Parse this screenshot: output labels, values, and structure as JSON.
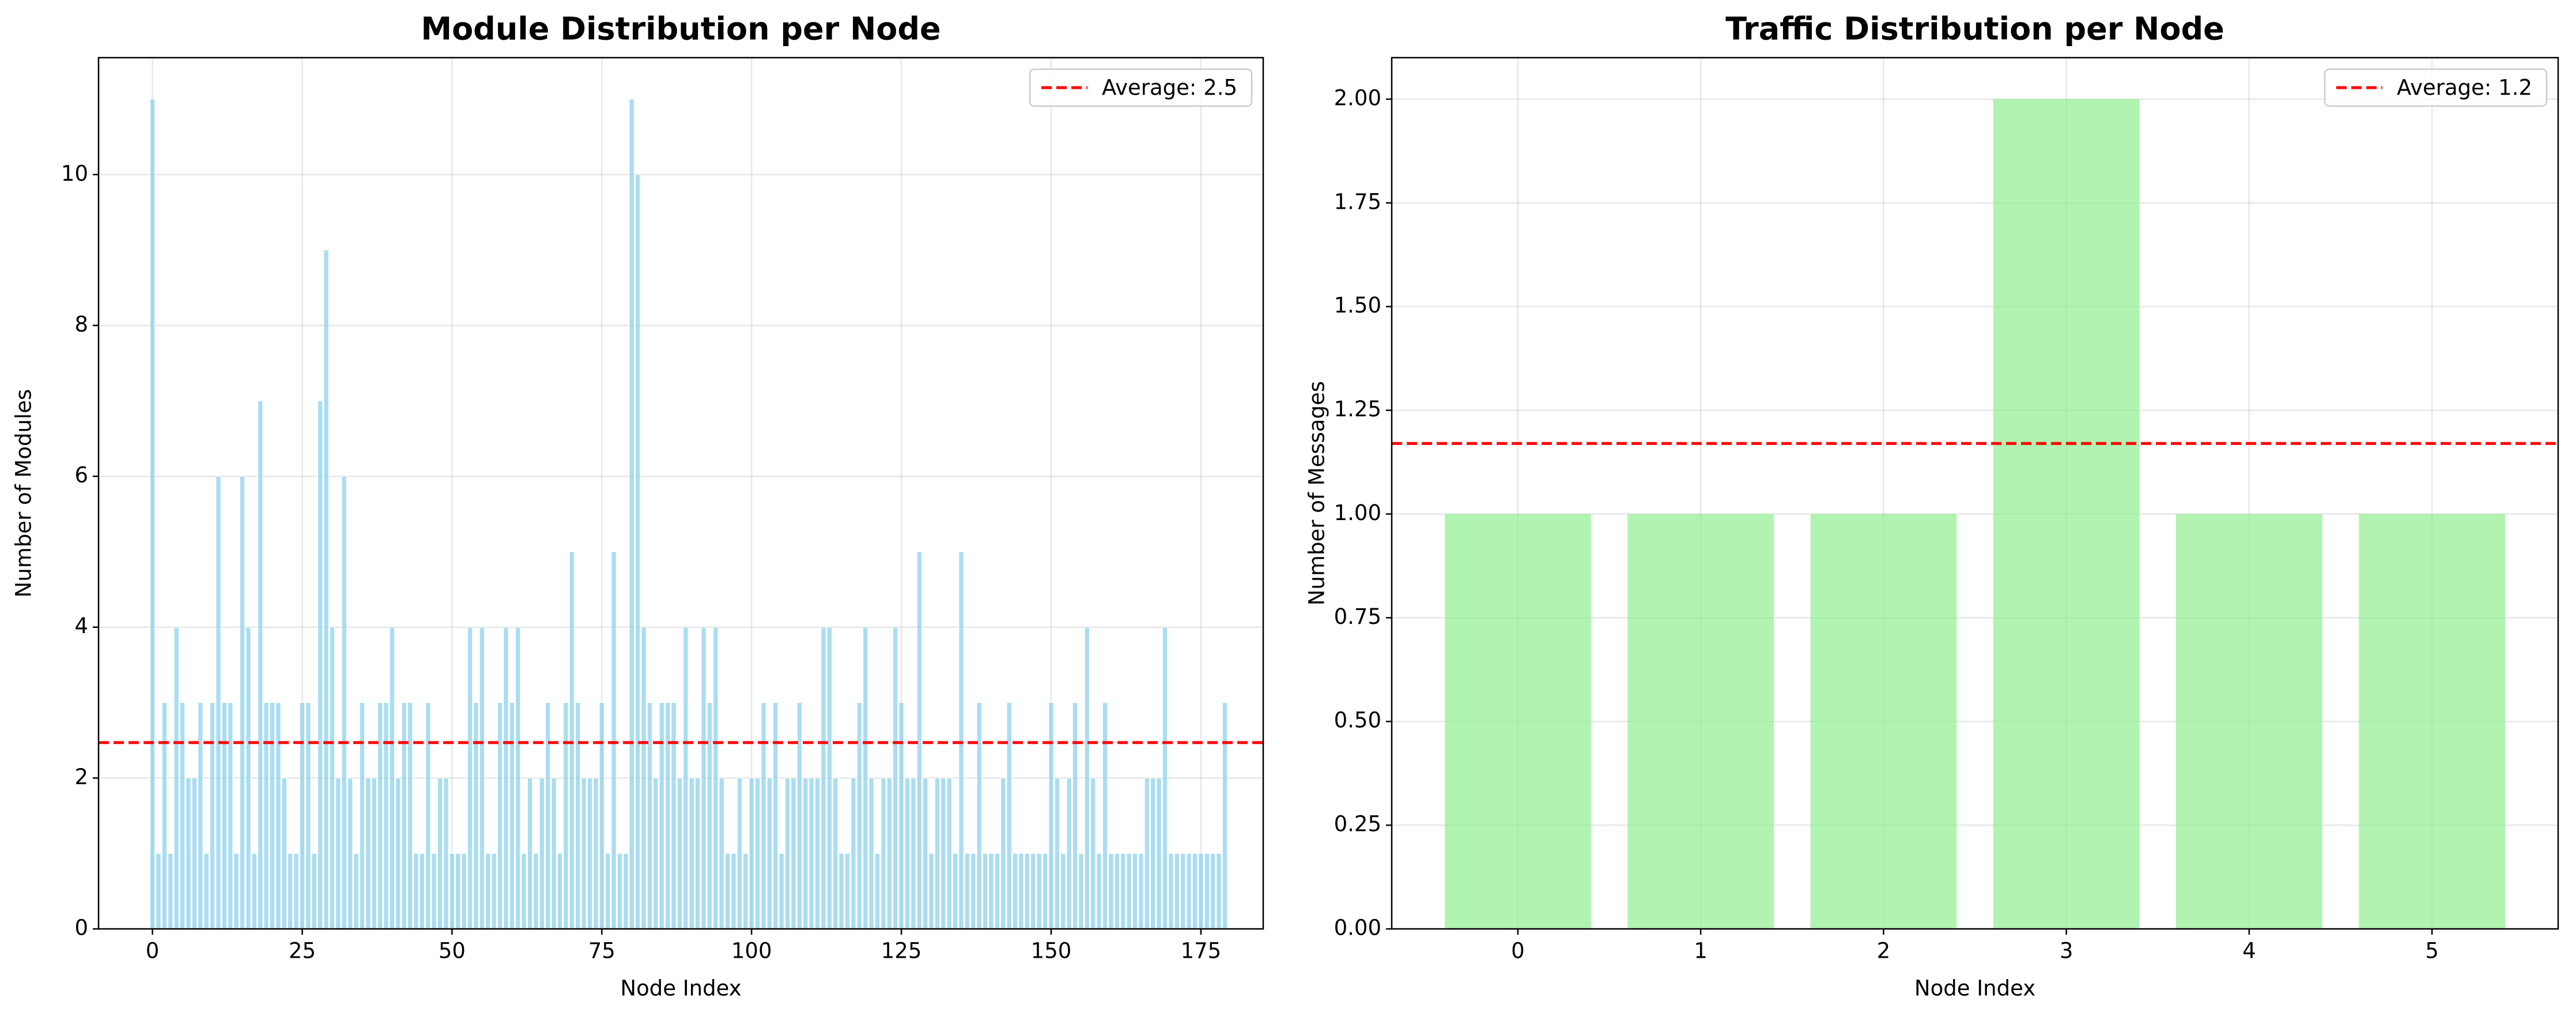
{
  "chart_data": [
    {
      "type": "bar",
      "title": "Module Distribution per Node",
      "xlabel": "Node Index",
      "ylabel": "Number of Modules",
      "x": [
        0,
        1,
        2,
        3,
        4,
        5,
        6,
        7,
        8,
        9,
        10,
        11,
        12,
        13,
        14,
        15,
        16,
        17,
        18,
        19,
        20,
        21,
        22,
        23,
        24,
        25,
        26,
        27,
        28,
        29,
        30,
        31,
        32,
        33,
        34,
        35,
        36,
        37,
        38,
        39,
        40,
        41,
        42,
        43,
        44,
        45,
        46,
        47,
        48,
        49,
        50,
        51,
        52,
        53,
        54,
        55,
        56,
        57,
        58,
        59,
        60,
        61,
        62,
        63,
        64,
        65,
        66,
        67,
        68,
        69,
        70,
        71,
        72,
        73,
        74,
        75,
        76,
        77,
        78,
        79,
        80,
        81,
        82,
        83,
        84,
        85,
        86,
        87,
        88,
        89,
        90,
        91,
        92,
        93,
        94,
        95,
        96,
        97,
        98,
        99,
        100,
        101,
        102,
        103,
        104,
        105,
        106,
        107,
        108,
        109,
        110,
        111,
        112,
        113,
        114,
        115,
        116,
        117,
        118,
        119,
        120,
        121,
        122,
        123,
        124,
        125,
        126,
        127,
        128,
        129,
        130,
        131,
        132,
        133,
        134,
        135,
        136,
        137,
        138,
        139,
        140,
        141,
        142,
        143,
        144,
        145,
        146,
        147,
        148,
        149,
        150,
        151,
        152,
        153,
        154,
        155,
        156,
        157,
        158,
        159,
        160,
        161,
        162,
        163,
        164,
        165,
        166,
        167,
        168,
        169,
        170,
        171,
        172,
        173,
        174,
        175,
        176,
        177,
        178,
        179
      ],
      "values": [
        11,
        1,
        3,
        1,
        4,
        3,
        2,
        2,
        3,
        1,
        3,
        6,
        3,
        3,
        1,
        6,
        4,
        1,
        7,
        3,
        3,
        3,
        2,
        1,
        1,
        3,
        3,
        1,
        7,
        9,
        4,
        2,
        6,
        2,
        1,
        3,
        2,
        2,
        3,
        3,
        4,
        2,
        3,
        3,
        1,
        1,
        3,
        1,
        2,
        2,
        1,
        1,
        1,
        4,
        3,
        4,
        1,
        1,
        3,
        4,
        3,
        4,
        1,
        2,
        1,
        2,
        3,
        2,
        1,
        3,
        5,
        3,
        2,
        2,
        2,
        3,
        1,
        5,
        1,
        1,
        11,
        10,
        4,
        3,
        2,
        3,
        3,
        3,
        2,
        4,
        2,
        2,
        4,
        3,
        4,
        2,
        1,
        1,
        2,
        1,
        2,
        2,
        3,
        2,
        3,
        1,
        2,
        2,
        3,
        2,
        2,
        2,
        4,
        4,
        2,
        1,
        1,
        2,
        3,
        4,
        2,
        1,
        2,
        2,
        4,
        3,
        2,
        2,
        5,
        2,
        1,
        2,
        2,
        2,
        1,
        5,
        1,
        1,
        3,
        1,
        1,
        1,
        2,
        3,
        1,
        1,
        1,
        1,
        1,
        1,
        3,
        2,
        1,
        2,
        3,
        1,
        4,
        2,
        1,
        3,
        1,
        1,
        1,
        1,
        1,
        1,
        2,
        2,
        2,
        4,
        1,
        1,
        1,
        1,
        1,
        1,
        1,
        1,
        1,
        3
      ],
      "color": "skyblue",
      "xlim": [
        -9,
        185.4
      ],
      "xticks": [
        0,
        25,
        50,
        75,
        100,
        125,
        150,
        175
      ],
      "ylim": [
        0,
        11.55
      ],
      "yticks": [
        0,
        2,
        4,
        6,
        8,
        10
      ],
      "grid": true,
      "legend": "upper right",
      "average": {
        "value": 2.47,
        "label": "Average: 2.5",
        "color": "red"
      }
    },
    {
      "type": "bar",
      "title": "Traffic Distribution per Node",
      "xlabel": "Node Index",
      "ylabel": "Number of Messages",
      "categories": [
        "0",
        "1",
        "2",
        "3",
        "4",
        "5"
      ],
      "values": [
        1,
        1,
        1,
        2,
        1,
        1
      ],
      "color": "lightgreen",
      "xlim": [
        -0.69,
        5.69
      ],
      "ylim": [
        0,
        2.1
      ],
      "yticks": [
        {
          "value": 0,
          "label": "0.00"
        },
        {
          "value": 0.25,
          "label": "0.25"
        },
        {
          "value": 0.5,
          "label": "0.50"
        },
        {
          "value": 0.75,
          "label": "0.75"
        },
        {
          "value": 1,
          "label": "1.00"
        },
        {
          "value": 1.25,
          "label": "1.25"
        },
        {
          "value": 1.5,
          "label": "1.50"
        },
        {
          "value": 1.75,
          "label": "1.75"
        },
        {
          "value": 2,
          "label": "2.00"
        }
      ],
      "grid": true,
      "legend": "upper right",
      "average": {
        "value": 1.17,
        "label": "Average: 1.2",
        "color": "red"
      }
    }
  ]
}
